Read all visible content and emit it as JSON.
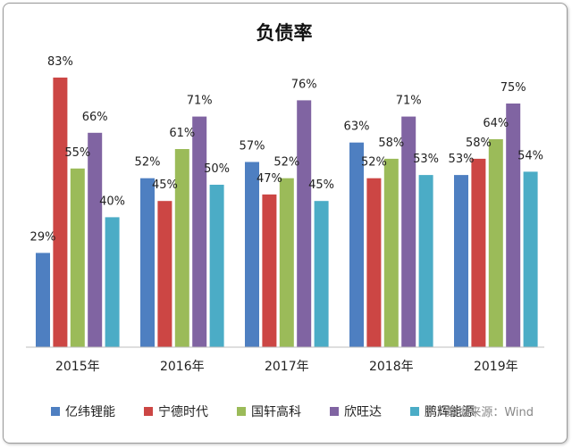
{
  "chart_data": {
    "type": "bar",
    "title": "负债率",
    "categories": [
      "2015年",
      "2016年",
      "2017年",
      "2018年",
      "2019年"
    ],
    "series": [
      {
        "name": "亿纬锂能",
        "color": "#4e7fc1",
        "values": [
          29,
          52,
          57,
          63,
          53
        ]
      },
      {
        "name": "宁德时代",
        "color": "#cc4644",
        "values": [
          83,
          45,
          47,
          52,
          58
        ]
      },
      {
        "name": "国轩高科",
        "color": "#9bbb59",
        "values": [
          55,
          61,
          52,
          58,
          64
        ]
      },
      {
        "name": "欣旺达",
        "color": "#8064a2",
        "values": [
          66,
          71,
          76,
          71,
          75
        ]
      },
      {
        "name": "鹏辉能源",
        "color": "#4bacc6",
        "values": [
          40,
          50,
          45,
          53,
          54
        ]
      }
    ],
    "value_suffix": "%",
    "ylim": [
      0,
      100
    ],
    "grid": false,
    "legend_position": "bottom",
    "source": "数据来源：Wind"
  }
}
